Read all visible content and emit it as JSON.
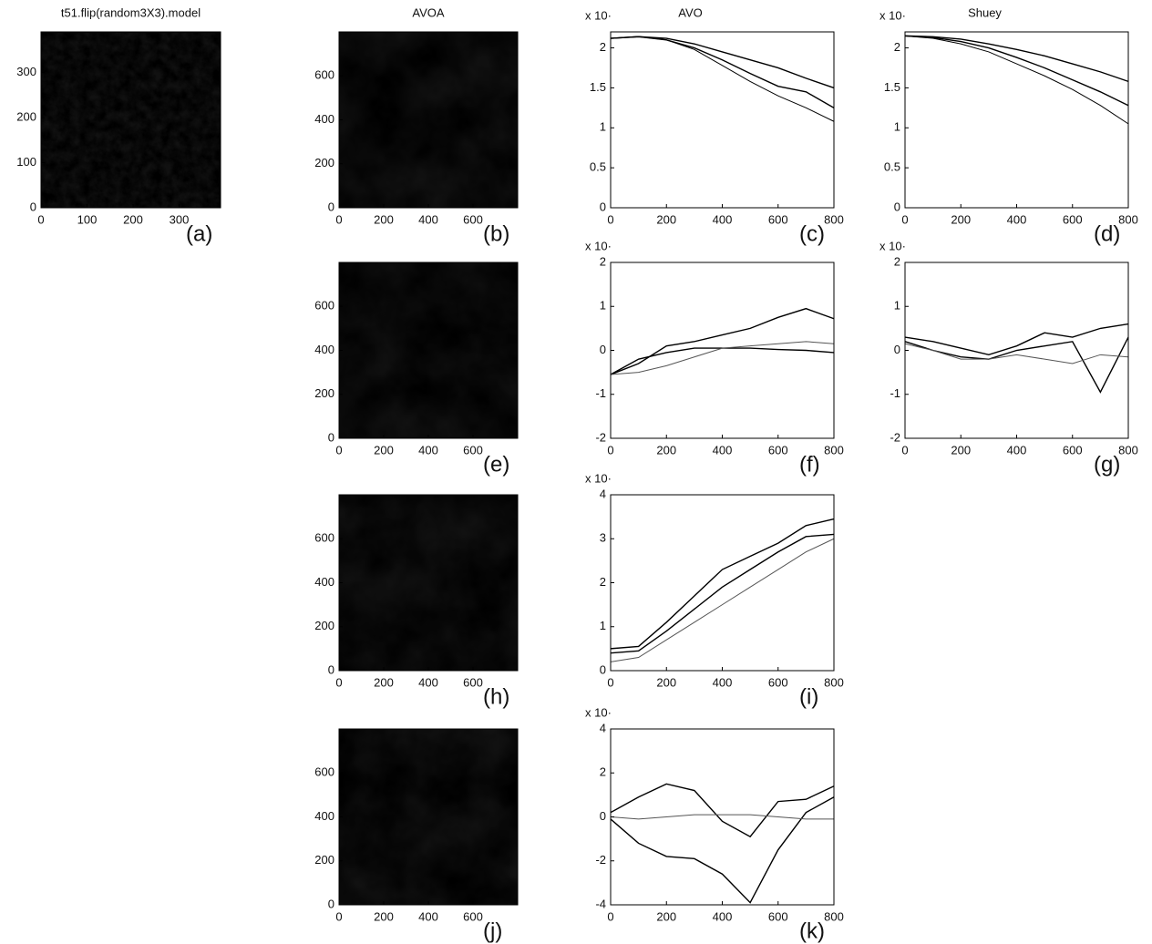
{
  "chart_data": [
    {
      "type": "image",
      "title": "t51.flip(random3X3).model",
      "panel_label": "(a)",
      "xlim": [
        0,
        390
      ],
      "ylim": [
        0,
        390
      ],
      "xticks": [
        0,
        100,
        200,
        300
      ],
      "yticks": [
        0,
        100,
        200,
        300
      ]
    },
    {
      "type": "image",
      "title": "AVOA",
      "panel_label": "(b)",
      "xlim": [
        0,
        800
      ],
      "ylim": [
        0,
        800
      ],
      "xticks": [
        0,
        200,
        400,
        600
      ],
      "yticks": [
        0,
        200,
        400,
        600
      ]
    },
    {
      "type": "line",
      "title": "AVO",
      "multiplier_label": "x 10·",
      "panel_label": "(c)",
      "x": [
        0,
        100,
        200,
        300,
        400,
        500,
        600,
        700,
        800
      ],
      "xlim": [
        0,
        800
      ],
      "ylim": [
        0,
        2.2
      ],
      "xticks": [
        0,
        200,
        400,
        600,
        800
      ],
      "yticks": [
        0,
        0.5,
        1,
        1.5,
        2
      ],
      "series": [
        {
          "color": "#000",
          "values": [
            2.12,
            2.14,
            2.12,
            2.05,
            1.95,
            1.85,
            1.75,
            1.62,
            1.5
          ]
        },
        {
          "color": "#000",
          "values": [
            2.12,
            2.14,
            2.1,
            2.0,
            1.85,
            1.68,
            1.52,
            1.45,
            1.25
          ]
        },
        {
          "color": "#000",
          "values": [
            2.12,
            2.14,
            2.1,
            1.98,
            1.78,
            1.58,
            1.4,
            1.25,
            1.08
          ]
        }
      ]
    },
    {
      "type": "line",
      "title": "Shuey",
      "multiplier_label": "x 10·",
      "panel_label": "(d)",
      "x": [
        0,
        100,
        200,
        300,
        400,
        500,
        600,
        700,
        800
      ],
      "xlim": [
        0,
        800
      ],
      "ylim": [
        0,
        2.2
      ],
      "xticks": [
        0,
        200,
        400,
        600,
        800
      ],
      "yticks": [
        0,
        0.5,
        1,
        1.5,
        2
      ],
      "series": [
        {
          "color": "#000",
          "values": [
            2.15,
            2.14,
            2.11,
            2.05,
            1.98,
            1.9,
            1.8,
            1.7,
            1.58
          ]
        },
        {
          "color": "#000",
          "values": [
            2.15,
            2.13,
            2.08,
            2.0,
            1.88,
            1.75,
            1.6,
            1.45,
            1.28
          ]
        },
        {
          "color": "#000",
          "values": [
            2.15,
            2.12,
            2.05,
            1.95,
            1.8,
            1.65,
            1.48,
            1.28,
            1.05
          ]
        }
      ]
    },
    {
      "type": "image",
      "panel_label": "(e)",
      "xlim": [
        0,
        800
      ],
      "ylim": [
        0,
        800
      ],
      "xticks": [
        0,
        200,
        400,
        600
      ],
      "yticks": [
        0,
        200,
        400,
        600
      ]
    },
    {
      "type": "line",
      "multiplier_label": "x 10·",
      "panel_label": "(f)",
      "x": [
        0,
        100,
        200,
        300,
        400,
        500,
        600,
        700,
        800
      ],
      "xlim": [
        0,
        800
      ],
      "ylim": [
        -2,
        2
      ],
      "xticks": [
        0,
        200,
        400,
        600,
        800
      ],
      "yticks": [
        -2,
        -1,
        0,
        1,
        2
      ],
      "series": [
        {
          "color": "#000",
          "values": [
            -0.55,
            -0.3,
            0.1,
            0.2,
            0.35,
            0.5,
            0.75,
            0.95,
            0.72
          ]
        },
        {
          "color": "#000",
          "values": [
            -0.55,
            -0.2,
            -0.05,
            0.05,
            0.05,
            0.05,
            0.02,
            0,
            -0.05
          ]
        },
        {
          "color": "#555",
          "values": [
            -0.55,
            -0.5,
            -0.35,
            -0.15,
            0.05,
            0.1,
            0.15,
            0.2,
            0.15
          ]
        }
      ]
    },
    {
      "type": "line",
      "multiplier_label": "x 10·",
      "panel_label": "(g)",
      "x": [
        0,
        100,
        200,
        300,
        400,
        500,
        600,
        700,
        800
      ],
      "xlim": [
        0,
        800
      ],
      "ylim": [
        -2,
        2
      ],
      "xticks": [
        0,
        200,
        400,
        600,
        800
      ],
      "yticks": [
        -2,
        -1,
        0,
        1,
        2
      ],
      "series": [
        {
          "color": "#000",
          "values": [
            0.3,
            0.2,
            0.05,
            -0.1,
            0.1,
            0.4,
            0.3,
            0.5,
            0.6
          ]
        },
        {
          "color": "#000",
          "values": [
            0.2,
            0,
            -0.15,
            -0.2,
            0,
            0.1,
            0.2,
            -0.95,
            0.3
          ]
        },
        {
          "color": "#555",
          "values": [
            0.15,
            0,
            -0.2,
            -0.2,
            -0.1,
            -0.2,
            -0.3,
            -0.1,
            -0.15
          ]
        }
      ]
    },
    {
      "type": "image",
      "panel_label": "(h)",
      "xlim": [
        0,
        800
      ],
      "ylim": [
        0,
        800
      ],
      "xticks": [
        0,
        200,
        400,
        600
      ],
      "yticks": [
        0,
        200,
        400,
        600
      ]
    },
    {
      "type": "line",
      "multiplier_label": "x 10·",
      "panel_label": "(i)",
      "x": [
        0,
        100,
        200,
        300,
        400,
        500,
        600,
        700,
        800
      ],
      "xlim": [
        0,
        800
      ],
      "ylim": [
        0,
        4
      ],
      "xticks": [
        0,
        200,
        400,
        600,
        800
      ],
      "yticks": [
        0,
        1,
        2,
        3,
        4
      ],
      "series": [
        {
          "color": "#000",
          "values": [
            0.5,
            0.55,
            1.1,
            1.7,
            2.3,
            2.6,
            2.9,
            3.3,
            3.45
          ]
        },
        {
          "color": "#000",
          "values": [
            0.4,
            0.45,
            0.9,
            1.4,
            1.9,
            2.3,
            2.7,
            3.05,
            3.1
          ]
        },
        {
          "color": "#555",
          "values": [
            0.2,
            0.3,
            0.7,
            1.1,
            1.5,
            1.9,
            2.3,
            2.7,
            3.0
          ]
        }
      ]
    },
    {
      "type": "image",
      "panel_label": "(j)",
      "xlim": [
        0,
        800
      ],
      "ylim": [
        0,
        800
      ],
      "xticks": [
        0,
        200,
        400,
        600
      ],
      "yticks": [
        0,
        200,
        400,
        600
      ]
    },
    {
      "type": "line",
      "multiplier_label": "x 10·",
      "panel_label": "(k)",
      "x": [
        0,
        100,
        200,
        300,
        400,
        500,
        600,
        700,
        800
      ],
      "xlim": [
        0,
        800
      ],
      "ylim": [
        -4,
        4
      ],
      "xticks": [
        0,
        200,
        400,
        600,
        800
      ],
      "yticks": [
        -4,
        -2,
        0,
        2,
        4
      ],
      "series": [
        {
          "color": "#000",
          "values": [
            0.2,
            0.9,
            1.5,
            1.2,
            -0.2,
            -0.9,
            0.7,
            0.8,
            1.4
          ]
        },
        {
          "color": "#000",
          "values": [
            -0.1,
            -1.2,
            -1.8,
            -1.9,
            -2.6,
            -3.9,
            -1.5,
            0.2,
            0.9
          ]
        },
        {
          "color": "#555",
          "values": [
            0,
            -0.1,
            0,
            0.1,
            0.1,
            0.1,
            0,
            -0.1,
            -0.1
          ]
        }
      ]
    }
  ]
}
